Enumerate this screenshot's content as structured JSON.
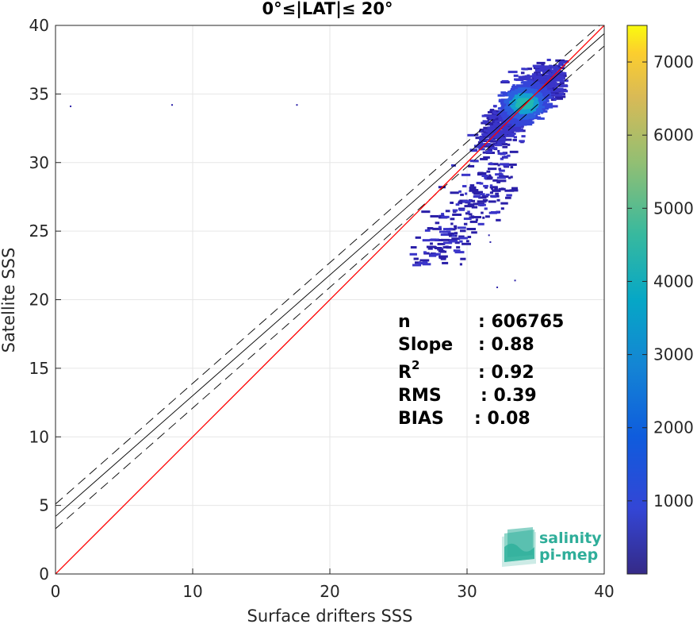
{
  "chart_data": {
    "type": "heatmap",
    "title": "0°≤|LAT|≤ 20°",
    "xlabel": "Surface drifters SSS",
    "ylabel": "Satellite SSS",
    "xlim": [
      0,
      40
    ],
    "ylim": [
      0,
      40
    ],
    "xticks": [
      "0",
      "10",
      "20",
      "30",
      "40"
    ],
    "yticks": [
      "0",
      "5",
      "10",
      "15",
      "20",
      "25",
      "30",
      "35",
      "40"
    ],
    "grid": true,
    "colorbar": {
      "colormap": "parula",
      "range": [
        0,
        7500
      ],
      "ticks": [
        "1000",
        "2000",
        "3000",
        "4000",
        "5000",
        "6000",
        "7000"
      ]
    },
    "lines": {
      "identity": {
        "slope": 1,
        "intercept": 0,
        "color": "#ff0000"
      },
      "fit": {
        "slope": 0.88,
        "intercept": 4.2,
        "color": "#000000"
      },
      "bounds": [
        {
          "slope": 0.88,
          "intercept": 5.1,
          "color": "#000000"
        },
        {
          "slope": 0.88,
          "intercept": 3.3,
          "color": "#000000"
        }
      ]
    },
    "density": {
      "outlier_points": [
        [
          1.1,
          34.1
        ],
        [
          8.5,
          34.2
        ],
        [
          17.6,
          34.2
        ],
        [
          32.2,
          20.9
        ],
        [
          33.5,
          21.4
        ],
        [
          31.6,
          24.7
        ],
        [
          31.7,
          24.2
        ]
      ],
      "scatter_cloud": {
        "x_range": [
          25,
          37
        ],
        "y_range": [
          22.5,
          37.5
        ],
        "core_center": [
          34.2,
          34.3
        ]
      }
    },
    "stats": {
      "n_label": "n",
      "n_value": ": 606765",
      "slope_label": "Slope",
      "slope_value": ": 0.88",
      "r2_label": "R",
      "r2_sup": "2",
      "r2_value": ": 0.92",
      "rms_label": "RMS",
      "rms_value": ": 0.39",
      "bias_label": "BIAS",
      "bias_value": ": 0.08"
    }
  },
  "logo": {
    "line1": "salinity",
    "line2": "pi-mep"
  },
  "colors": {
    "logo_teal": "#2fae9a",
    "identity": "#ff0000",
    "fit": "#000000"
  }
}
